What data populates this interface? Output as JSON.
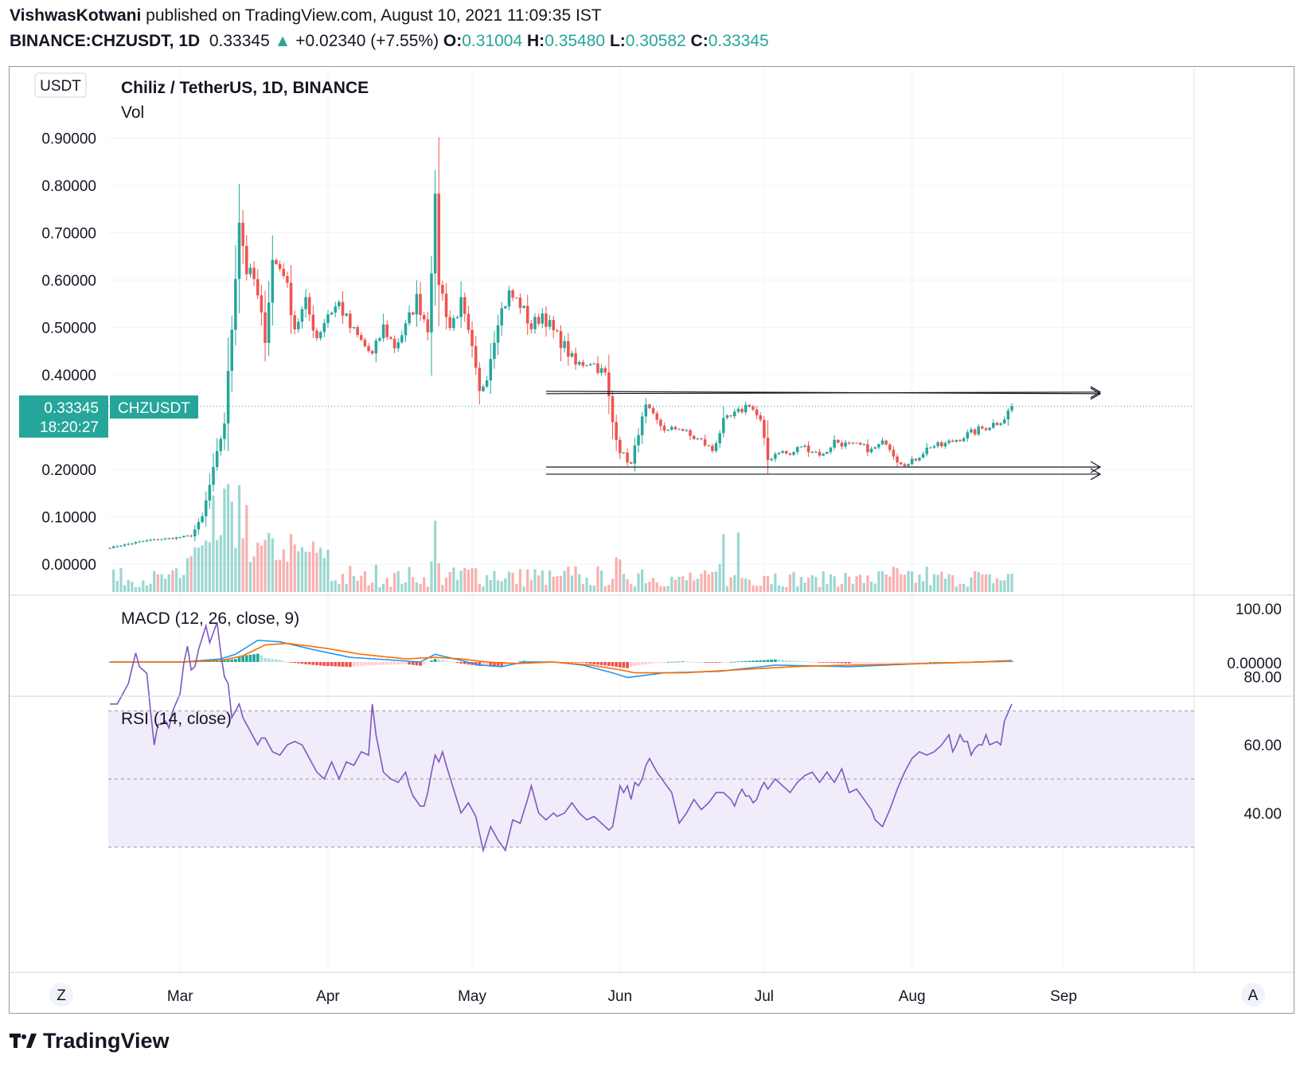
{
  "header": {
    "publisher": "VishwasKotwani",
    "published_text": "published on TradingView.com, August 10, 2021 11:09:35 IST",
    "symbol": "BINANCE:CHZUSDT, 1D",
    "last": "0.33345",
    "change": "+0.02340 (+7.55%)",
    "o_label": "O:",
    "o": "0.31004",
    "h_label": "H:",
    "h": "0.35480",
    "l_label": "L:",
    "l": "0.30582",
    "c_label": "C:",
    "c": "0.33345"
  },
  "chart": {
    "title": "Chiliz / TetherUS, 1D, BINANCE",
    "vol_label": "Vol",
    "currency_badge": "USDT",
    "price_badge": "0.33345",
    "countdown": "18:20:27",
    "symbol_badge": "CHZUSDT",
    "macd_label": "MACD (12, 26, close, 9)",
    "macd_zero": "0.00000",
    "rsi_label": "RSI (14, close)",
    "z_button": "Z",
    "a_button": "A"
  },
  "colors": {
    "up": "#26a69a",
    "down": "#ef5350",
    "macd_line": "#2196f3",
    "signal_line": "#ff6d00",
    "rsi_line": "#7e57c2",
    "rsi_band": "#f1ecf9"
  },
  "chart_data": [
    {
      "type": "candlestick",
      "title": "Chiliz / TetherUS, 1D, BINANCE",
      "y_ticks": [
        "0.90000",
        "0.80000",
        "0.70000",
        "0.60000",
        "0.50000",
        "0.40000",
        "0.20000",
        "0.10000",
        "0.00000"
      ],
      "x_ticks": [
        "Mar",
        "Apr",
        "May",
        "Jun",
        "Jul",
        "Aug",
        "Sep"
      ],
      "ylim": [
        -0.05,
        1.0
      ],
      "last_price": 0.33345,
      "channel": {
        "upper": [
          0.365,
          0.36
        ],
        "lower": [
          0.205,
          0.19
        ]
      },
      "close_anchors": [
        [
          0,
          0.035
        ],
        [
          10,
          0.05
        ],
        [
          17,
          0.055
        ],
        [
          22,
          0.06
        ],
        [
          25,
          0.1
        ],
        [
          28,
          0.2
        ],
        [
          31,
          0.3
        ],
        [
          33,
          0.5
        ],
        [
          35,
          0.73
        ],
        [
          37,
          0.62
        ],
        [
          39,
          0.6
        ],
        [
          42,
          0.48
        ],
        [
          44,
          0.64
        ],
        [
          47,
          0.62
        ],
        [
          50,
          0.5
        ],
        [
          53,
          0.55
        ],
        [
          56,
          0.48
        ],
        [
          59,
          0.53
        ],
        [
          62,
          0.55
        ],
        [
          65,
          0.5
        ],
        [
          68,
          0.47
        ],
        [
          71,
          0.44
        ],
        [
          74,
          0.5
        ],
        [
          77,
          0.46
        ],
        [
          80,
          0.5
        ],
        [
          83,
          0.56
        ],
        [
          86,
          0.5
        ],
        [
          88,
          0.76
        ],
        [
          89,
          0.6
        ],
        [
          92,
          0.5
        ],
        [
          95,
          0.55
        ],
        [
          98,
          0.45
        ],
        [
          100,
          0.36
        ],
        [
          102,
          0.4
        ],
        [
          105,
          0.52
        ],
        [
          108,
          0.57
        ],
        [
          111,
          0.55
        ],
        [
          114,
          0.5
        ],
        [
          117,
          0.53
        ],
        [
          120,
          0.49
        ],
        [
          123,
          0.46
        ],
        [
          126,
          0.42
        ],
        [
          130,
          0.43
        ],
        [
          134,
          0.4
        ],
        [
          136,
          0.3
        ],
        [
          138,
          0.24
        ],
        [
          141,
          0.21
        ],
        [
          143,
          0.28
        ],
        [
          145,
          0.33
        ],
        [
          148,
          0.3
        ],
        [
          151,
          0.28
        ],
        [
          154,
          0.29
        ],
        [
          157,
          0.27
        ],
        [
          160,
          0.26
        ],
        [
          163,
          0.24
        ],
        [
          166,
          0.3
        ],
        [
          170,
          0.32
        ],
        [
          173,
          0.34
        ],
        [
          176,
          0.3
        ],
        [
          178,
          0.22
        ],
        [
          181,
          0.24
        ],
        [
          184,
          0.23
        ],
        [
          187,
          0.25
        ],
        [
          190,
          0.24
        ],
        [
          193,
          0.23
        ],
        [
          196,
          0.26
        ],
        [
          200,
          0.25
        ],
        [
          203,
          0.25
        ],
        [
          206,
          0.24
        ],
        [
          210,
          0.26
        ],
        [
          213,
          0.22
        ],
        [
          216,
          0.21
        ],
        [
          219,
          0.23
        ],
        [
          222,
          0.25
        ],
        [
          225,
          0.25
        ],
        [
          228,
          0.26
        ],
        [
          231,
          0.27
        ],
        [
          234,
          0.28
        ],
        [
          237,
          0.29
        ],
        [
          240,
          0.3
        ],
        [
          242,
          0.31
        ],
        [
          244,
          0.33345
        ]
      ],
      "volume_note": "Vol"
    },
    {
      "type": "line",
      "title": "MACD (12, 26, close, 9)",
      "series": [
        {
          "name": "MACD",
          "x": [
            0,
            20,
            30,
            34,
            40,
            46,
            55,
            65,
            78,
            84,
            88,
            95,
            100,
            106,
            112,
            120,
            128,
            136,
            140,
            150,
            165,
            180,
            200,
            220,
            235,
            244
          ],
          "values": [
            0.0,
            0.0,
            0.02,
            0.05,
            0.14,
            0.13,
            0.08,
            0.03,
            0.01,
            0.0,
            0.05,
            0.01,
            -0.02,
            -0.03,
            0.0,
            0.0,
            -0.02,
            -0.07,
            -0.1,
            -0.07,
            -0.06,
            -0.02,
            -0.03,
            -0.01,
            0.0,
            0.01
          ]
        },
        {
          "name": "Signal",
          "x": [
            0,
            20,
            30,
            36,
            42,
            48,
            58,
            68,
            80,
            88,
            95,
            102,
            110,
            120,
            130,
            138,
            142,
            155,
            170,
            185,
            200,
            220,
            235,
            244
          ],
          "values": [
            0.0,
            0.0,
            0.01,
            0.04,
            0.11,
            0.12,
            0.09,
            0.05,
            0.02,
            0.03,
            0.02,
            0.0,
            -0.01,
            0.0,
            -0.02,
            -0.05,
            -0.07,
            -0.07,
            -0.05,
            -0.03,
            -0.02,
            -0.01,
            0.0,
            0.005
          ]
        }
      ],
      "ylim": [
        -0.13,
        0.19
      ],
      "zero_label": "0.00000"
    },
    {
      "type": "line",
      "title": "RSI (14, close)",
      "y_ticks": [
        "100.00",
        "80.00",
        "60.00",
        "40.00"
      ],
      "ylim": [
        22,
        106
      ],
      "band": [
        30,
        70
      ],
      "mid": 50,
      "series": [
        {
          "name": "RSI",
          "x": [
            0,
            2,
            5,
            7,
            8,
            10,
            11,
            12,
            13,
            14,
            15,
            16,
            17,
            19,
            20,
            21,
            22,
            23,
            24,
            26,
            27,
            29,
            30,
            31,
            32,
            33,
            34,
            35,
            36,
            37,
            39,
            40,
            41,
            42,
            43,
            44,
            46,
            48,
            50,
            52,
            54,
            56,
            58,
            60,
            62,
            64,
            66,
            68,
            70,
            71,
            72,
            74,
            76,
            78,
            80,
            81,
            82,
            84,
            85,
            86,
            87,
            88,
            89,
            90,
            91,
            93,
            95,
            97,
            99,
            101,
            103,
            105,
            107,
            109,
            111,
            113,
            114,
            116,
            118,
            120,
            121,
            123,
            125,
            127,
            129,
            131,
            133,
            135,
            136,
            137,
            138,
            139,
            140,
            141,
            142,
            143,
            144,
            145,
            146,
            148,
            150,
            152,
            154,
            156,
            158,
            160,
            162,
            164,
            166,
            168,
            169,
            170,
            171,
            172,
            173,
            174,
            175,
            176,
            177,
            178,
            180,
            182,
            184,
            186,
            188,
            190,
            192,
            194,
            196,
            198,
            200,
            202,
            204,
            206,
            207,
            209,
            211,
            213,
            215,
            217,
            219,
            221,
            223,
            225,
            227,
            228,
            229,
            230,
            231,
            232,
            233,
            234,
            235,
            236,
            237,
            238,
            240,
            241,
            242,
            244
          ],
          "values": [
            72,
            72,
            78,
            87,
            83,
            81,
            70,
            60,
            66,
            66,
            67,
            65,
            70,
            75,
            84,
            89,
            82,
            83,
            88,
            95,
            90,
            96,
            87,
            80,
            78,
            68,
            70,
            72,
            68,
            66,
            62,
            60,
            62,
            62,
            60,
            58,
            57,
            60,
            61,
            60,
            56,
            52,
            50,
            55,
            50,
            55,
            54,
            58,
            57,
            72,
            63,
            52,
            50,
            49,
            52,
            48,
            45,
            42,
            42,
            46,
            52,
            57,
            55,
            58,
            54,
            47,
            40,
            43,
            39,
            29,
            36,
            32,
            29,
            38,
            37,
            44,
            48,
            40,
            38,
            40,
            39,
            40,
            43,
            40,
            38,
            39,
            37,
            35,
            36,
            42,
            48,
            46,
            48,
            44,
            49,
            48,
            50,
            54,
            56,
            52,
            49,
            46,
            37,
            40,
            44,
            41,
            43,
            46,
            46,
            44,
            42,
            45,
            47,
            45,
            45,
            43,
            44,
            47,
            49,
            47,
            50,
            48,
            46,
            49,
            51,
            52,
            49,
            52,
            49,
            53,
            46,
            47,
            44,
            41,
            38,
            36,
            41,
            47,
            52,
            56,
            58,
            57,
            58,
            60,
            63,
            58,
            60,
            63,
            61,
            61,
            57,
            59,
            60,
            60,
            63,
            60,
            61,
            60,
            67,
            72
          ]
        }
      ]
    }
  ]
}
